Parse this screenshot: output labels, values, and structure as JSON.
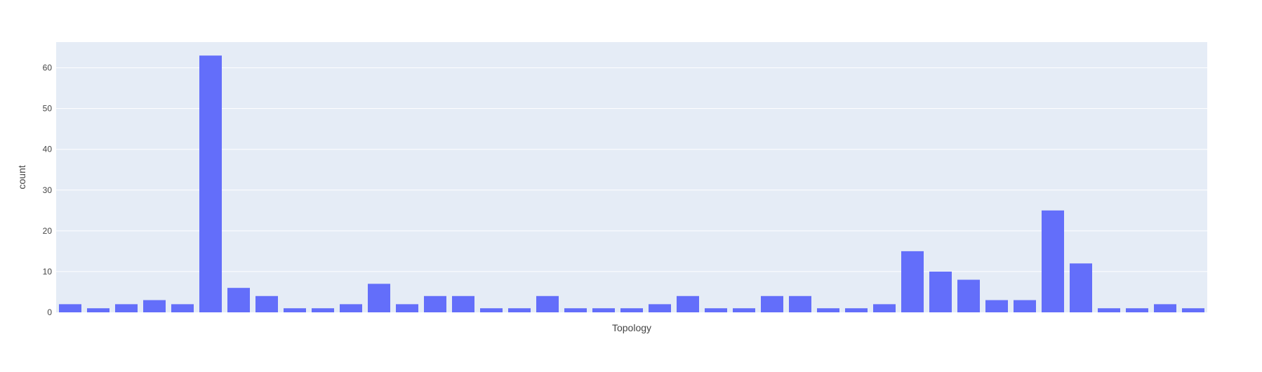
{
  "chart_data": {
    "type": "bar",
    "xlabel": "Topology",
    "ylabel": "count",
    "ylim": [
      0,
      66.3
    ],
    "yticks": [
      0,
      10,
      20,
      30,
      40,
      50,
      60
    ],
    "grid": true,
    "x_tick_labels_visible": false,
    "colors": {
      "bar": "#636efa",
      "plot_background": "#e5ecf6",
      "grid": "#ffffff"
    },
    "values": [
      2,
      1,
      2,
      3,
      2,
      63,
      6,
      4,
      1,
      1,
      2,
      7,
      2,
      4,
      4,
      1,
      1,
      4,
      1,
      1,
      1,
      2,
      4,
      1,
      1,
      4,
      4,
      1,
      1,
      2,
      15,
      10,
      8,
      3,
      3,
      25,
      12,
      1,
      1,
      2,
      1
    ]
  }
}
